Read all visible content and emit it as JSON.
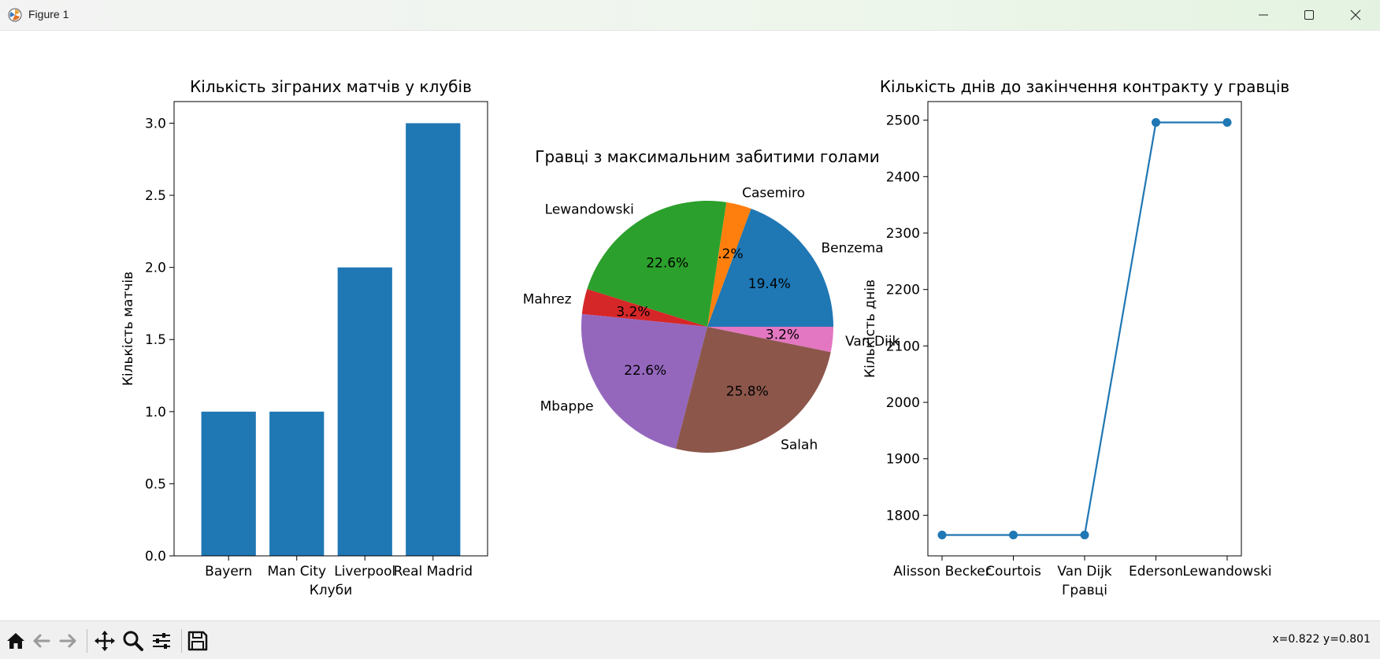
{
  "window": {
    "title": "Figure 1"
  },
  "toolbar": {
    "items": [
      "home-icon",
      "back-arrow-icon",
      "forward-arrow-icon",
      "pan-icon",
      "zoom-icon",
      "subplots-config-icon",
      "save-icon"
    ],
    "coords": "x=0.822 y=0.801"
  },
  "colors": {
    "bar": "#1f77b4",
    "line": "#1f77b4",
    "pie": [
      "#1f77b4",
      "#ff7f0e",
      "#2ca02c",
      "#d62728",
      "#9467bd",
      "#8c564b",
      "#e377c2"
    ]
  },
  "chart_data": [
    {
      "type": "bar",
      "title": "Кількість зіграних матчів у клубів",
      "xlabel": "Клуби",
      "ylabel": "Кількість матчів",
      "categories": [
        "Bayern",
        "Man City",
        "Liverpool",
        "Real Madrid"
      ],
      "values": [
        1,
        1,
        2,
        3
      ],
      "ylim": [
        0,
        3.15
      ],
      "yticks": [
        "0.0",
        "0.5",
        "1.0",
        "1.5",
        "2.0",
        "2.5",
        "3.0"
      ]
    },
    {
      "type": "pie",
      "title": "Гравці з максимальним забитими голами",
      "labels": [
        "Benzema",
        "Casemiro",
        "Lewandowski",
        "Mahrez",
        "Mbappe",
        "Salah",
        "Van Dijk"
      ],
      "percent_labels": [
        "19.4%",
        "3.2%",
        "22.6%",
        "3.2%",
        "22.6%",
        "25.8%",
        "3.2%"
      ],
      "values": [
        6,
        1,
        7,
        1,
        7,
        8,
        1
      ]
    },
    {
      "type": "line",
      "title": "Кількість днів до закінчення контракту у гравців",
      "xlabel": "Гравці",
      "ylabel": "Кількість днів",
      "categories": [
        "Alisson Becker",
        "Courtois",
        "Van Dijk",
        "Ederson",
        "Lewandowski"
      ],
      "values": [
        1765,
        1765,
        1765,
        2496,
        2496
      ],
      "ylim": [
        1728,
        2533
      ],
      "yticks": [
        "1800",
        "1900",
        "2000",
        "2100",
        "2200",
        "2300",
        "2400",
        "2500"
      ]
    }
  ]
}
